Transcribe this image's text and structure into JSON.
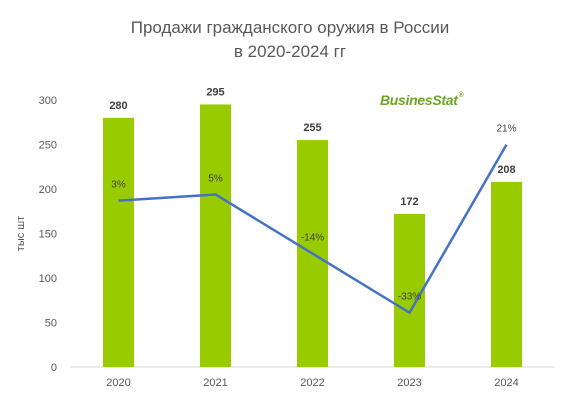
{
  "title_lines": [
    "Продажи гражданского оружия в России",
    "в 2020-2024 гг"
  ],
  "logo_text": "BusinesStat",
  "logo_mark": "®",
  "chart_data": {
    "type": "bar",
    "categories": [
      "2020",
      "2021",
      "2022",
      "2023",
      "2024"
    ],
    "values": [
      280,
      295,
      255,
      172,
      208
    ],
    "value_labels": [
      "280",
      "295",
      "255",
      "172",
      "208"
    ],
    "ylabel": "тыс шт",
    "ylim": [
      0,
      300
    ],
    "yticks": [
      0,
      50,
      100,
      150,
      200,
      250,
      300
    ],
    "bar_color": "#99cc00",
    "grid": false,
    "growth_line": {
      "type": "line",
      "color": "#4472c4",
      "labels": [
        "3%",
        "5%",
        "-14%",
        "-33%",
        "21%"
      ],
      "values": [
        3,
        5,
        -14,
        -33,
        21
      ]
    }
  }
}
